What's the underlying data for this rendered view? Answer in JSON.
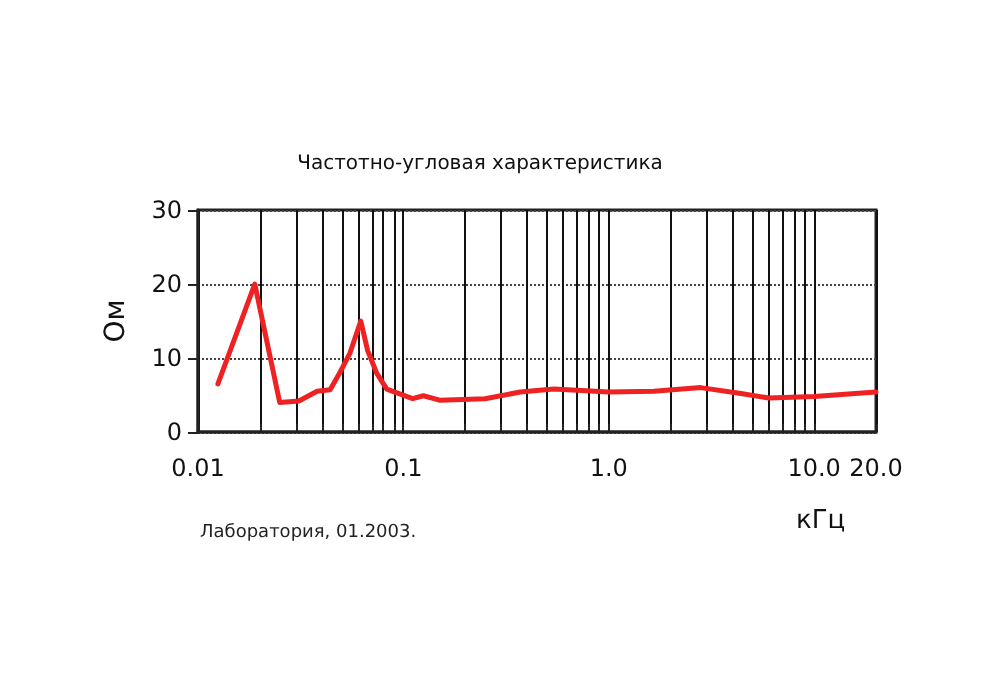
{
  "chart_data": {
    "type": "line",
    "title": "Частотно-угловая характеристика",
    "xlabel": "кГц",
    "ylabel": "Ом",
    "annotations": [
      "Лаборатория, 01.2003."
    ],
    "log": "x",
    "grid": true,
    "marker": "none",
    "line_style": "solid",
    "x": [
      0.0125,
      0.0189,
      0.025,
      0.031,
      0.038,
      0.044,
      0.049,
      0.055,
      0.062,
      0.067,
      0.074,
      0.083,
      0.111,
      0.125,
      0.15,
      0.25,
      0.37,
      0.54,
      1.0,
      1.66,
      2.8,
      4.4,
      6,
      10,
      20
    ],
    "series": [
      {
        "color": "#ee2222",
        "values": [
          6.5,
          20,
          4,
          4.2,
          5.5,
          5.7,
          8,
          10.7,
          15,
          11,
          8,
          5.8,
          4.5,
          4.9,
          4.3,
          4.5,
          5.4,
          5.8,
          5.4,
          5.5,
          6,
          5.2,
          4.6,
          4.8,
          5.4
        ]
      }
    ],
    "xlim": [
      0.01,
      20
    ],
    "xticks": [
      {
        "value": 0.01,
        "label": "0.01"
      },
      {
        "value": 0.02,
        "label": null
      },
      {
        "value": 0.03,
        "label": null
      },
      {
        "value": 0.04,
        "label": null
      },
      {
        "value": 0.05,
        "label": null
      },
      {
        "value": 0.06,
        "label": null
      },
      {
        "value": 0.07,
        "label": null
      },
      {
        "value": 0.08,
        "label": null
      },
      {
        "value": 0.09,
        "label": null
      },
      {
        "value": 0.1,
        "label": "0.1"
      },
      {
        "value": 0.2,
        "label": null
      },
      {
        "value": 0.3,
        "label": null
      },
      {
        "value": 0.4,
        "label": null
      },
      {
        "value": 0.5,
        "label": null
      },
      {
        "value": 0.6,
        "label": null
      },
      {
        "value": 0.7,
        "label": null
      },
      {
        "value": 0.8,
        "label": null
      },
      {
        "value": 0.9,
        "label": null
      },
      {
        "value": 1,
        "label": "1.0"
      },
      {
        "value": 2,
        "label": null
      },
      {
        "value": 3,
        "label": null
      },
      {
        "value": 4,
        "label": null
      },
      {
        "value": 5,
        "label": null
      },
      {
        "value": 6,
        "label": null
      },
      {
        "value": 7,
        "label": null
      },
      {
        "value": 8,
        "label": null
      },
      {
        "value": 9,
        "label": null
      },
      {
        "value": 10,
        "label": "10.0"
      },
      {
        "value": 20,
        "label": "20.0"
      }
    ],
    "ylim": [
      0,
      30
    ],
    "yticks": [
      0,
      10,
      20,
      30
    ]
  }
}
